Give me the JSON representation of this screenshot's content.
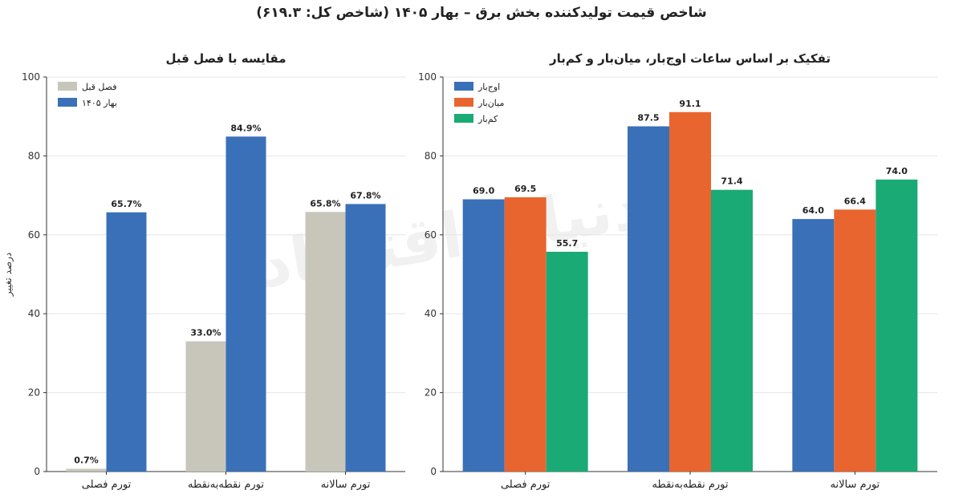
{
  "title": "شاخص قیمت تولیدکننده بخش برق – بهار ۱۴۰۵ (شاخص کل: ۶۱۹.۳)",
  "watermark": "دنیای اقتصاد",
  "chart_data": [
    {
      "type": "bar",
      "title": "مقایسه با فصل قبل",
      "ylabel": "درصد تغییر",
      "xlabel": "",
      "ylim": [
        0,
        100
      ],
      "yticks": [
        0,
        20,
        40,
        60,
        80,
        100
      ],
      "grid": true,
      "legend_position": "top-left",
      "categories": [
        "تورم فصلی",
        "تورم نقطه‌به‌نقطه",
        "تورم سالانه"
      ],
      "series": [
        {
          "name": "فصل قبل",
          "color": "#c8c6bb",
          "values": [
            0.7,
            33.0,
            65.8
          ],
          "labels": [
            "0.7%",
            "33.0%",
            "65.8%"
          ]
        },
        {
          "name": "بهار ۱۴۰۵",
          "color": "#3a70b8",
          "values": [
            65.7,
            84.9,
            67.8
          ],
          "labels": [
            "65.7%",
            "84.9%",
            "67.8%"
          ]
        }
      ]
    },
    {
      "type": "bar",
      "title": "تفکیک بر اساس ساعات اوج‌بار، میان‌بار و کم‌بار",
      "ylabel": "",
      "xlabel": "",
      "ylim": [
        0,
        100
      ],
      "yticks": [
        0,
        20,
        40,
        60,
        80,
        100
      ],
      "grid": true,
      "legend_position": "top-left",
      "categories": [
        "تورم فصلی",
        "تورم نقطه‌به‌نقطه",
        "تورم سالانه"
      ],
      "series": [
        {
          "name": "اوج‌بار",
          "color": "#3a70b8",
          "values": [
            69.0,
            87.5,
            64.0
          ],
          "labels": [
            "69.0",
            "87.5",
            "64.0"
          ]
        },
        {
          "name": "میان‌بار",
          "color": "#e8652f",
          "values": [
            69.5,
            91.1,
            66.4
          ],
          "labels": [
            "69.5",
            "91.1",
            "66.4"
          ]
        },
        {
          "name": "کم‌بار",
          "color": "#1aaa75",
          "values": [
            55.7,
            71.4,
            74.0
          ],
          "labels": [
            "55.7",
            "71.4",
            "74.0"
          ]
        }
      ]
    }
  ]
}
